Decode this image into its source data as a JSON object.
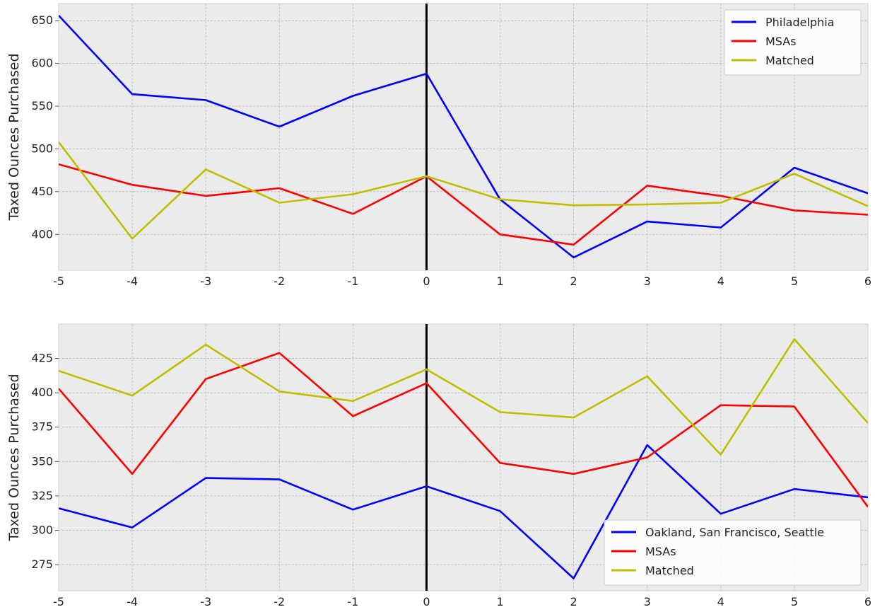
{
  "chart_data": [
    {
      "type": "line",
      "ylabel": "Taxed Ounces Purchased",
      "xlabel": "",
      "x": [
        -5,
        -4,
        -3,
        -2,
        -1,
        0,
        1,
        2,
        3,
        4,
        5,
        6
      ],
      "xlim": [
        -5,
        6
      ],
      "ylim": [
        358,
        670
      ],
      "yticks": [
        400,
        450,
        500,
        550,
        600,
        650
      ],
      "grid": true,
      "vline_x": 0,
      "legend_position": "top-right",
      "series": [
        {
          "name": "Philadelphia",
          "color": "#0000ff",
          "values": [
            656,
            564,
            557,
            526,
            562,
            588,
            441,
            373,
            415,
            408,
            478,
            448
          ]
        },
        {
          "name": "MSAs",
          "color": "#ff0000",
          "values": [
            482,
            458,
            445,
            454,
            424,
            468,
            400,
            388,
            457,
            445,
            428,
            423
          ]
        },
        {
          "name": "Matched",
          "color": "#bfbf00",
          "values": [
            508,
            395,
            476,
            437,
            447,
            468,
            441,
            434,
            435,
            437,
            471,
            433
          ]
        }
      ]
    },
    {
      "type": "line",
      "ylabel": "Taxed Ounces Purchased",
      "xlabel": "",
      "x": [
        -5,
        -4,
        -3,
        -2,
        -1,
        0,
        1,
        2,
        3,
        4,
        5,
        6
      ],
      "xlim": [
        -5,
        6
      ],
      "ylim": [
        256,
        450
      ],
      "yticks": [
        275,
        300,
        325,
        350,
        375,
        400,
        425
      ],
      "grid": true,
      "vline_x": 0,
      "legend_position": "bottom-right",
      "series": [
        {
          "name": "Oakland, San Francisco, Seattle",
          "color": "#0000ff",
          "values": [
            316,
            302,
            338,
            337,
            315,
            332,
            314,
            265,
            362,
            312,
            330,
            324
          ]
        },
        {
          "name": "MSAs",
          "color": "#ff0000",
          "values": [
            403,
            341,
            410,
            429,
            383,
            407,
            349,
            341,
            353,
            391,
            390,
            317
          ]
        },
        {
          "name": "Matched",
          "color": "#bfbf00",
          "values": [
            416,
            398,
            435,
            401,
            394,
            417,
            386,
            382,
            412,
            355,
            439,
            378
          ]
        }
      ]
    }
  ]
}
